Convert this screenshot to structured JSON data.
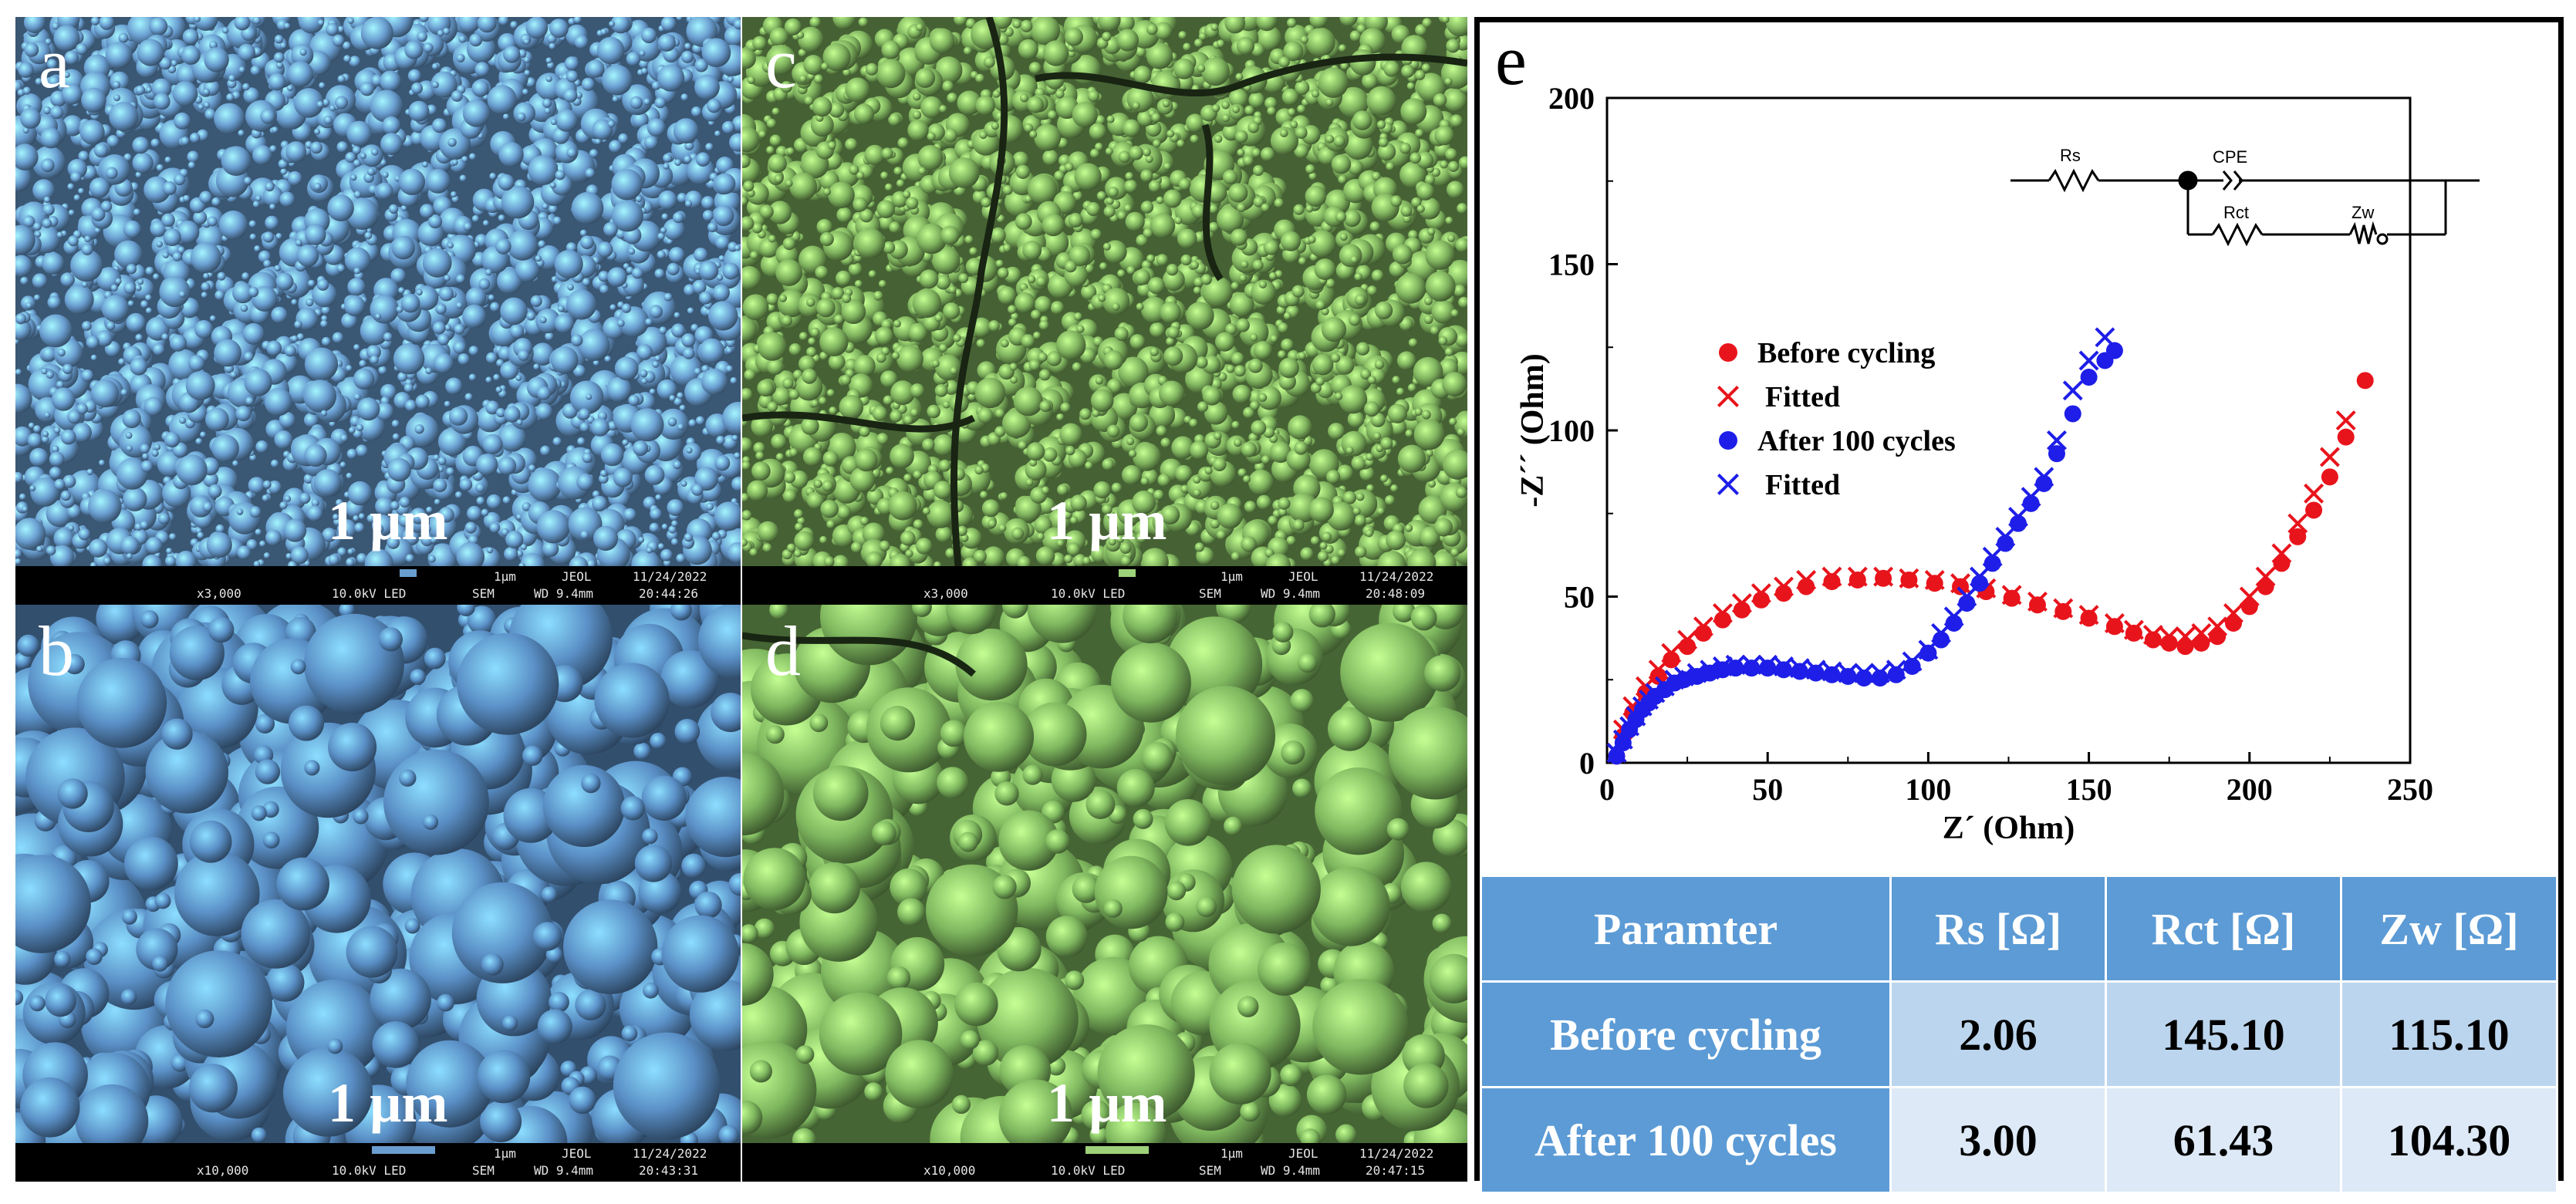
{
  "panels": {
    "a": {
      "letter": "a",
      "scale_label": "1 µm",
      "tint": "#6a9ed1",
      "info": {
        "scale": "1µm",
        "maker": "JEOL",
        "date": "11/24/2022",
        "mag": "x3,000",
        "kv": "10.0kV LED",
        "mode": "SEM",
        "wd": "WD 9.4mm",
        "time": "20:44:26"
      }
    },
    "b": {
      "letter": "b",
      "scale_label": "1 µm",
      "tint": "#5a8fc6",
      "info": {
        "scale": "1µm",
        "maker": "JEOL",
        "date": "11/24/2022",
        "mag": "x10,000",
        "kv": "10.0kV LED",
        "mode": "SEM",
        "wd": "WD 9.4mm",
        "time": "20:43:31"
      }
    },
    "c": {
      "letter": "c",
      "scale_label": "1 µm",
      "tint": "#7fb25e",
      "info": {
        "scale": "1µm",
        "maker": "JEOL",
        "date": "11/24/2022",
        "mag": "x3,000",
        "kv": "10.0kV LED",
        "mode": "SEM",
        "wd": "WD 9.4mm",
        "time": "20:48:09"
      }
    },
    "d": {
      "letter": "d",
      "scale_label": "1 µm",
      "tint": "#7fb85f",
      "info": {
        "scale": "1µm",
        "maker": "JEOL",
        "date": "11/24/2022",
        "mag": "x10,000",
        "kv": "10.0kV LED",
        "mode": "SEM",
        "wd": "WD 9.4mm",
        "time": "20:47:15"
      }
    }
  },
  "panel_e": {
    "letter": "e"
  },
  "circuit": {
    "rs": "Rs",
    "cpe": "CPE",
    "rct": "Rct",
    "zw": "Zw"
  },
  "chart_data": {
    "type": "scatter",
    "xlabel": "Z´ (Ohm)",
    "ylabel": "-Z´´ (Ohm)",
    "xlim": [
      0,
      250
    ],
    "ylim": [
      0,
      200
    ],
    "xticks": [
      0,
      50,
      100,
      150,
      200,
      250
    ],
    "yticks": [
      0,
      50,
      100,
      150,
      200
    ],
    "legend_position": "center-left",
    "series": [
      {
        "name": "Before cycling",
        "marker": "circle",
        "color": "#e8141c",
        "x": [
          3,
          5,
          8,
          12,
          16,
          20,
          25,
          30,
          36,
          42,
          48,
          55,
          62,
          70,
          78,
          86,
          94,
          102,
          110,
          118,
          126,
          134,
          142,
          150,
          158,
          164,
          170,
          175,
          180,
          185,
          190,
          195,
          200,
          205,
          210,
          215,
          220,
          225,
          230,
          236
        ],
        "y": [
          2,
          8,
          15,
          21,
          26,
          31,
          35,
          39,
          43,
          46,
          49,
          51,
          53,
          54.5,
          55,
          55.5,
          55,
          54,
          53,
          51.5,
          49.5,
          47.5,
          45.5,
          43.5,
          41,
          39,
          37,
          36,
          35,
          36,
          38,
          42,
          47,
          53,
          60,
          68,
          76,
          86,
          98,
          115
        ]
      },
      {
        "name": "Fitted",
        "marker": "x",
        "color": "#e8141c",
        "x": [
          3,
          5,
          8,
          12,
          16,
          20,
          25,
          30,
          36,
          42,
          48,
          55,
          62,
          70,
          78,
          86,
          94,
          102,
          110,
          118,
          126,
          134,
          142,
          150,
          158,
          164,
          170,
          175,
          180,
          185,
          190,
          195,
          200,
          205,
          210,
          215,
          220,
          225,
          230
        ],
        "y": [
          3,
          10,
          17,
          23,
          28,
          33,
          37,
          41,
          45,
          48,
          51,
          53,
          55,
          56,
          56,
          56,
          55.5,
          55,
          54,
          52.5,
          50.5,
          48.5,
          46.5,
          44.5,
          42,
          40,
          38.5,
          38,
          38,
          39,
          41,
          45,
          50,
          56,
          63,
          72,
          81,
          92,
          103
        ]
      },
      {
        "name": "After 100 cycles",
        "marker": "circle",
        "color": "#1e1ee8",
        "x": [
          3,
          5,
          7,
          9,
          11,
          13,
          15,
          18,
          21,
          24,
          28,
          32,
          36,
          40,
          45,
          50,
          55,
          60,
          65,
          70,
          75,
          80,
          85,
          90,
          95,
          100,
          104,
          108,
          112,
          116,
          120,
          124,
          128,
          132,
          136,
          140,
          145,
          150,
          155,
          158
        ],
        "y": [
          2,
          6,
          10,
          13,
          16,
          18,
          20,
          22,
          24,
          25,
          26,
          27,
          28,
          28.5,
          28.5,
          28.5,
          28,
          27.5,
          27,
          26.5,
          26,
          25.5,
          25.5,
          26.5,
          29,
          33,
          37,
          42,
          48,
          54,
          60,
          66,
          72,
          78,
          84,
          93,
          105,
          116,
          121,
          124
        ]
      },
      {
        "name": "Fitted",
        "marker": "x",
        "color": "#1e1ee8",
        "x": [
          3,
          5,
          7,
          9,
          11,
          13,
          15,
          18,
          21,
          24,
          28,
          32,
          36,
          40,
          45,
          50,
          55,
          60,
          65,
          70,
          75,
          80,
          85,
          90,
          95,
          100,
          104,
          108,
          112,
          116,
          120,
          124,
          128,
          132,
          136,
          140,
          145,
          150,
          155
        ],
        "y": [
          3,
          7,
          11,
          14,
          17,
          19,
          21,
          23,
          25,
          26,
          27,
          28,
          29,
          29.5,
          29.5,
          29.5,
          29,
          28.5,
          28,
          27.5,
          27,
          27,
          27,
          28,
          30.5,
          34,
          39,
          44,
          50,
          56,
          62,
          68,
          74,
          80,
          86,
          97,
          112,
          121,
          128
        ]
      }
    ]
  },
  "table": {
    "headers": [
      "Paramter",
      "Rs [Ω]",
      "Rct [Ω]",
      "Zw [Ω]"
    ],
    "rows": [
      [
        "Before cycling",
        "2.06",
        "145.10",
        "115.10"
      ],
      [
        "After 100 cycles",
        "3.00",
        "61.43",
        "104.30"
      ]
    ]
  }
}
